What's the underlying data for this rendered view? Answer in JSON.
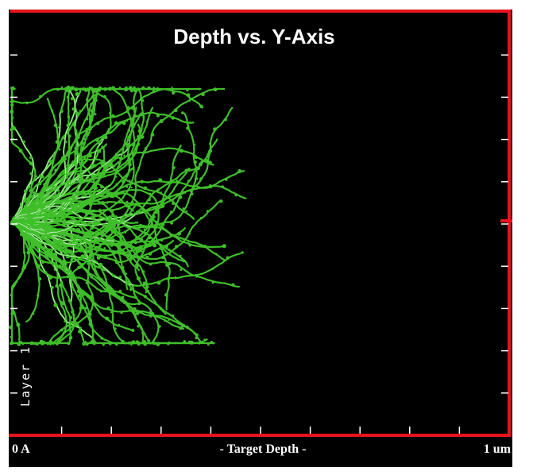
{
  "chart_data": {
    "type": "scatter",
    "title": "Depth vs. Y-Axis",
    "xlabel": "- Target Depth -",
    "ylabel": "",
    "x_tick_labels": {
      "min": "0 A",
      "max": "1 um"
    },
    "layer_label": "Layer 1",
    "grid": false,
    "series": [
      {
        "color": "#3fbf2a",
        "description_free": true
      }
    ],
    "colors": {
      "background": "#000000",
      "axis": "#e8141c",
      "tracks": "#3fbf2a",
      "tracks_highlight": "#ffffff",
      "text": "#ffffff"
    }
  }
}
